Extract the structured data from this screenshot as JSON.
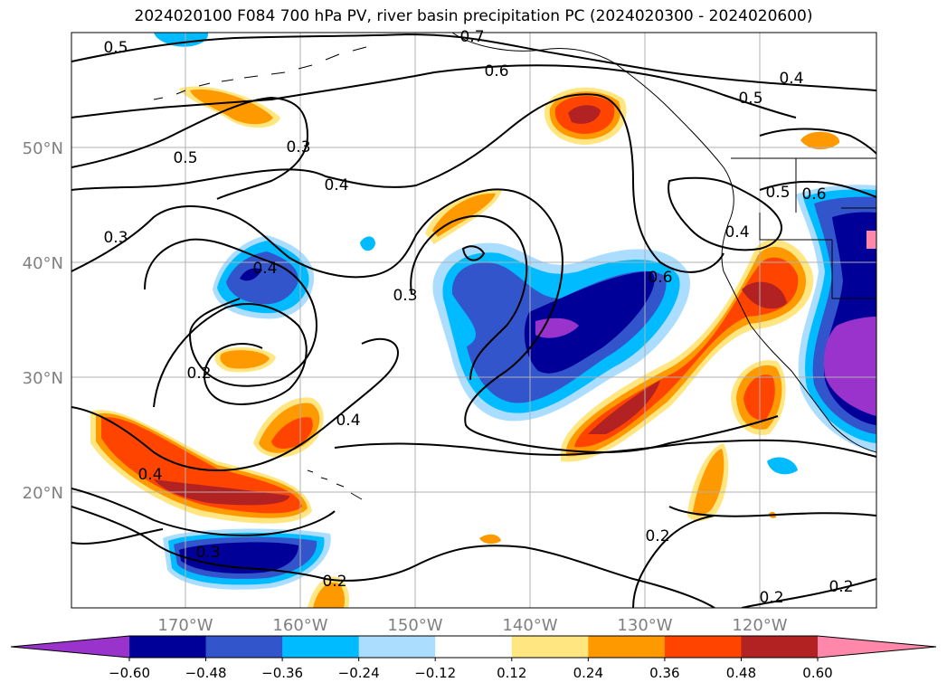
{
  "title": "2024020100 F084 700 hPa PV, river basin precipitation PC (2024020300 - 2024020600)",
  "lat_labels": [
    "50°N",
    "40°N",
    "30°N",
    "20°N"
  ],
  "lon_labels": [
    "170°W",
    "160°W",
    "150°W",
    "140°W",
    "130°W",
    "120°W"
  ],
  "colorbar": {
    "ticks": [
      "−0.60",
      "−0.48",
      "−0.36",
      "−0.24",
      "−0.12",
      "0.12",
      "0.24",
      "0.36",
      "0.48",
      "0.60"
    ],
    "colors": [
      "#9933cc",
      "#000099",
      "#3355cc",
      "#00bbff",
      "#aaddff",
      "#ffffff",
      "#ffe680",
      "#ff9900",
      "#ff4400",
      "#b22222",
      "#ff88aa"
    ]
  },
  "contour_labels": [
    {
      "text": "0.5"
    },
    {
      "text": "0.7"
    },
    {
      "text": "0.6"
    },
    {
      "text": "0.4"
    },
    {
      "text": "0.5"
    },
    {
      "text": "0.3"
    },
    {
      "text": "0.4"
    },
    {
      "text": "0.5"
    },
    {
      "text": "0.3"
    },
    {
      "text": "0.4"
    },
    {
      "text": "0.3"
    },
    {
      "text": "0.6"
    },
    {
      "text": "0.2"
    },
    {
      "text": "0.4"
    },
    {
      "text": "0.4"
    },
    {
      "text": "0.3"
    },
    {
      "text": "0.2"
    },
    {
      "text": "0.2"
    },
    {
      "text": "0.2"
    },
    {
      "text": "0.2"
    },
    {
      "text": "0.5"
    },
    {
      "text": "0.6"
    },
    {
      "text": "0.4"
    }
  ]
}
